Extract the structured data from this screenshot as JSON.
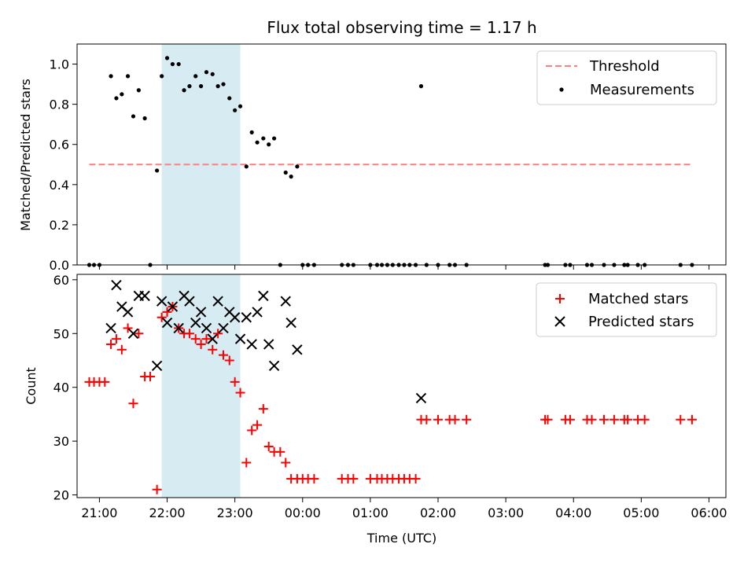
{
  "chart_data": [
    {
      "type": "scatter",
      "title": "Flux total observing time = 1.17 h",
      "xlabel": "",
      "ylabel": "Matched/Predicted stars",
      "xlim": [
        20.67,
        30.25
      ],
      "ylim": [
        0.0,
        1.1
      ],
      "yticks": [
        0.0,
        0.2,
        0.4,
        0.6,
        0.8,
        1.0
      ],
      "ytick_labels": [
        "0.0",
        "0.2",
        "0.4",
        "0.6",
        "0.8",
        "1.0"
      ],
      "highlight_span": [
        21.92,
        23.08
      ],
      "threshold": {
        "name": "Threshold",
        "y": 0.5,
        "x_start": 20.85,
        "x_end": 29.75,
        "color": "#ff7f7f"
      },
      "series": [
        {
          "name": "Measurements",
          "marker": "dot",
          "color": "#000000",
          "points": [
            [
              20.85,
              0.0
            ],
            [
              20.92,
              0.0
            ],
            [
              21.0,
              0.0
            ],
            [
              21.17,
              0.94
            ],
            [
              21.25,
              0.83
            ],
            [
              21.33,
              0.85
            ],
            [
              21.42,
              0.94
            ],
            [
              21.5,
              0.74
            ],
            [
              21.58,
              0.87
            ],
            [
              21.67,
              0.73
            ],
            [
              21.75,
              0.0
            ],
            [
              21.85,
              0.47
            ],
            [
              21.92,
              0.94
            ],
            [
              22.0,
              1.03
            ],
            [
              22.08,
              1.0
            ],
            [
              22.17,
              1.0
            ],
            [
              22.25,
              0.87
            ],
            [
              22.33,
              0.89
            ],
            [
              22.42,
              0.94
            ],
            [
              22.5,
              0.89
            ],
            [
              22.58,
              0.96
            ],
            [
              22.67,
              0.95
            ],
            [
              22.75,
              0.89
            ],
            [
              22.83,
              0.9
            ],
            [
              22.92,
              0.83
            ],
            [
              23.0,
              0.77
            ],
            [
              23.08,
              0.79
            ],
            [
              23.17,
              0.49
            ],
            [
              23.25,
              0.66
            ],
            [
              23.33,
              0.61
            ],
            [
              23.42,
              0.63
            ],
            [
              23.5,
              0.6
            ],
            [
              23.58,
              0.63
            ],
            [
              23.67,
              0.0
            ],
            [
              23.75,
              0.46
            ],
            [
              23.83,
              0.44
            ],
            [
              23.92,
              0.49
            ],
            [
              24.0,
              0.0
            ],
            [
              24.08,
              0.0
            ],
            [
              24.17,
              0.0
            ],
            [
              24.58,
              0.0
            ],
            [
              24.67,
              0.0
            ],
            [
              24.75,
              0.0
            ],
            [
              25.0,
              0.0
            ],
            [
              25.1,
              0.0
            ],
            [
              25.17,
              0.0
            ],
            [
              25.25,
              0.0
            ],
            [
              25.33,
              0.0
            ],
            [
              25.42,
              0.0
            ],
            [
              25.5,
              0.0
            ],
            [
              25.58,
              0.0
            ],
            [
              25.67,
              0.0
            ],
            [
              25.75,
              0.89
            ],
            [
              25.83,
              0.0
            ],
            [
              26.0,
              0.0
            ],
            [
              26.17,
              0.0
            ],
            [
              26.25,
              0.0
            ],
            [
              26.42,
              0.0
            ],
            [
              27.58,
              0.0
            ],
            [
              27.62,
              0.0
            ],
            [
              27.88,
              0.0
            ],
            [
              27.95,
              0.0
            ],
            [
              28.2,
              0.0
            ],
            [
              28.27,
              0.0
            ],
            [
              28.45,
              0.0
            ],
            [
              28.6,
              0.0
            ],
            [
              28.75,
              0.0
            ],
            [
              28.8,
              0.0
            ],
            [
              28.95,
              0.0
            ],
            [
              29.05,
              0.0
            ],
            [
              29.58,
              0.0
            ],
            [
              29.75,
              0.0
            ]
          ]
        }
      ],
      "legend": {
        "position": "top-right",
        "entries": [
          "Threshold",
          "Measurements"
        ]
      }
    },
    {
      "type": "scatter",
      "title": "",
      "xlabel": "Time (UTC)",
      "ylabel": "Count",
      "xlim": [
        20.67,
        30.25
      ],
      "ylim": [
        19.5,
        61.0
      ],
      "yticks": [
        20,
        30,
        40,
        50,
        60
      ],
      "ytick_labels": [
        "20",
        "30",
        "40",
        "50",
        "60"
      ],
      "xticks": [
        21,
        22,
        23,
        24,
        25,
        26,
        27,
        28,
        29,
        30
      ],
      "xtick_labels": [
        "21:00",
        "22:00",
        "23:00",
        "00:00",
        "01:00",
        "02:00",
        "03:00",
        "04:00",
        "05:00",
        "06:00"
      ],
      "highlight_span": [
        21.92,
        23.08
      ],
      "series": [
        {
          "name": "Matched stars",
          "marker": "plus",
          "color": "#ff0000",
          "points": [
            [
              20.85,
              41
            ],
            [
              20.92,
              41
            ],
            [
              21.0,
              41
            ],
            [
              21.08,
              41
            ],
            [
              21.17,
              48
            ],
            [
              21.25,
              49
            ],
            [
              21.33,
              47
            ],
            [
              21.42,
              51
            ],
            [
              21.5,
              37
            ],
            [
              21.58,
              50
            ],
            [
              21.67,
              42
            ],
            [
              21.75,
              42
            ],
            [
              21.85,
              21
            ],
            [
              21.92,
              53
            ],
            [
              22.0,
              54
            ],
            [
              22.08,
              55
            ],
            [
              22.17,
              51
            ],
            [
              22.25,
              50
            ],
            [
              22.33,
              50
            ],
            [
              22.42,
              49
            ],
            [
              22.5,
              48
            ],
            [
              22.58,
              49
            ],
            [
              22.67,
              47
            ],
            [
              22.75,
              50
            ],
            [
              22.83,
              46
            ],
            [
              22.92,
              45
            ],
            [
              23.0,
              41
            ],
            [
              23.08,
              39
            ],
            [
              23.17,
              26
            ],
            [
              23.25,
              32
            ],
            [
              23.33,
              33
            ],
            [
              23.42,
              36
            ],
            [
              23.5,
              29
            ],
            [
              23.58,
              28
            ],
            [
              23.67,
              28
            ],
            [
              23.75,
              26
            ],
            [
              23.83,
              23
            ],
            [
              23.92,
              23
            ],
            [
              24.0,
              23
            ],
            [
              24.08,
              23
            ],
            [
              24.17,
              23
            ],
            [
              24.58,
              23
            ],
            [
              24.67,
              23
            ],
            [
              24.75,
              23
            ],
            [
              25.0,
              23
            ],
            [
              25.1,
              23
            ],
            [
              25.17,
              23
            ],
            [
              25.25,
              23
            ],
            [
              25.33,
              23
            ],
            [
              25.42,
              23
            ],
            [
              25.5,
              23
            ],
            [
              25.58,
              23
            ],
            [
              25.67,
              23
            ],
            [
              25.75,
              34
            ],
            [
              25.83,
              34
            ],
            [
              26.0,
              34
            ],
            [
              26.17,
              34
            ],
            [
              26.25,
              34
            ],
            [
              26.42,
              34
            ],
            [
              27.58,
              34
            ],
            [
              27.62,
              34
            ],
            [
              27.88,
              34
            ],
            [
              27.95,
              34
            ],
            [
              28.2,
              34
            ],
            [
              28.27,
              34
            ],
            [
              28.45,
              34
            ],
            [
              28.6,
              34
            ],
            [
              28.75,
              34
            ],
            [
              28.8,
              34
            ],
            [
              28.95,
              34
            ],
            [
              29.05,
              34
            ],
            [
              29.58,
              34
            ],
            [
              29.75,
              34
            ]
          ]
        },
        {
          "name": "Predicted stars",
          "marker": "x",
          "color": "#000000",
          "points": [
            [
              21.17,
              51
            ],
            [
              21.25,
              59
            ],
            [
              21.33,
              55
            ],
            [
              21.42,
              54
            ],
            [
              21.5,
              50
            ],
            [
              21.58,
              57
            ],
            [
              21.67,
              57
            ],
            [
              21.85,
              44
            ],
            [
              21.92,
              56
            ],
            [
              22.0,
              52
            ],
            [
              22.08,
              55
            ],
            [
              22.17,
              51
            ],
            [
              22.25,
              57
            ],
            [
              22.33,
              56
            ],
            [
              22.42,
              52
            ],
            [
              22.5,
              54
            ],
            [
              22.58,
              51
            ],
            [
              22.67,
              49
            ],
            [
              22.75,
              56
            ],
            [
              22.83,
              51
            ],
            [
              22.92,
              54
            ],
            [
              23.0,
              53
            ],
            [
              23.08,
              49
            ],
            [
              23.17,
              53
            ],
            [
              23.25,
              48
            ],
            [
              23.33,
              54
            ],
            [
              23.42,
              57
            ],
            [
              23.5,
              48
            ],
            [
              23.58,
              44
            ],
            [
              23.75,
              56
            ],
            [
              23.83,
              52
            ],
            [
              23.92,
              47
            ],
            [
              25.75,
              38
            ]
          ]
        }
      ],
      "legend": {
        "position": "top-right",
        "entries": [
          "Matched stars",
          "Predicted stars"
        ]
      }
    }
  ]
}
